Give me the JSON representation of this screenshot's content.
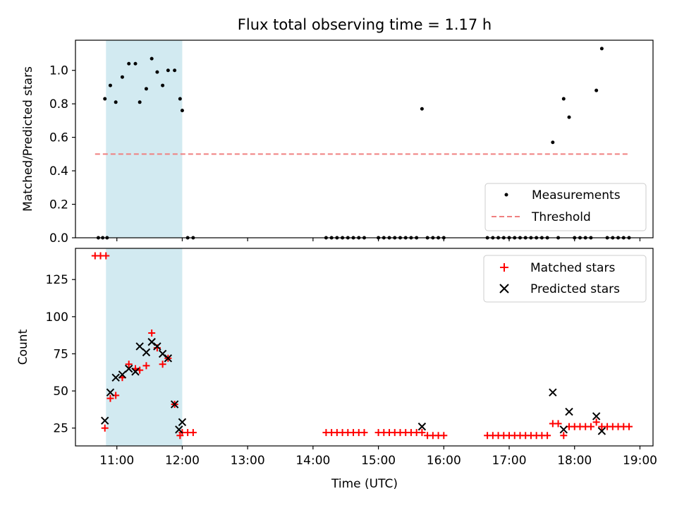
{
  "chart_data": [
    {
      "type": "scatter",
      "title": "Flux total observing time = 1.17 h",
      "xlabel": "",
      "ylabel": "Matched/Predicted stars",
      "ylim": [
        0,
        1.18
      ],
      "yticks": [
        0.0,
        0.2,
        0.4,
        0.6,
        0.8,
        1.0
      ],
      "ytick_labels": [
        "0.0",
        "0.2",
        "0.4",
        "0.6",
        "0.8",
        "1.0"
      ],
      "shaded_interval": [
        "10:50",
        "12:00"
      ],
      "legend_position": "lower-right",
      "series": [
        {
          "name": "Measurements",
          "marker": "dot",
          "color": "#000000",
          "points": [
            [
              "10:43",
              0
            ],
            [
              "10:47",
              0
            ],
            [
              "10:51",
              0
            ],
            [
              "10:49",
              0.83
            ],
            [
              "10:54",
              0.91
            ],
            [
              "10:59",
              0.81
            ],
            [
              "11:05",
              0.96
            ],
            [
              "11:11",
              1.04
            ],
            [
              "11:17",
              1.04
            ],
            [
              "11:21",
              0.81
            ],
            [
              "11:27",
              0.89
            ],
            [
              "11:32",
              1.07
            ],
            [
              "11:37",
              0.99
            ],
            [
              "11:42",
              0.91
            ],
            [
              "11:47",
              1.0
            ],
            [
              "11:53",
              1.0
            ],
            [
              "11:58",
              0.83
            ],
            [
              "12:00",
              0.76
            ],
            [
              "12:05",
              0
            ],
            [
              "12:10",
              0
            ],
            [
              "14:12",
              0
            ],
            [
              "14:17",
              0
            ],
            [
              "14:22",
              0
            ],
            [
              "14:27",
              0
            ],
            [
              "14:32",
              0
            ],
            [
              "14:37",
              0
            ],
            [
              "14:42",
              0
            ],
            [
              "14:47",
              0
            ],
            [
              "15:00",
              0
            ],
            [
              "15:05",
              0
            ],
            [
              "15:10",
              0
            ],
            [
              "15:15",
              0
            ],
            [
              "15:20",
              0
            ],
            [
              "15:25",
              0
            ],
            [
              "15:30",
              0
            ],
            [
              "15:35",
              0
            ],
            [
              "15:40",
              0.77
            ],
            [
              "15:45",
              0
            ],
            [
              "15:50",
              0
            ],
            [
              "15:55",
              0
            ],
            [
              "16:00",
              0
            ],
            [
              "16:40",
              0
            ],
            [
              "16:45",
              0
            ],
            [
              "16:50",
              0
            ],
            [
              "16:55",
              0
            ],
            [
              "17:00",
              0
            ],
            [
              "17:05",
              0
            ],
            [
              "17:10",
              0
            ],
            [
              "17:15",
              0
            ],
            [
              "17:20",
              0
            ],
            [
              "17:25",
              0
            ],
            [
              "17:30",
              0
            ],
            [
              "17:35",
              0
            ],
            [
              "17:40",
              0.57
            ],
            [
              "17:45",
              0
            ],
            [
              "17:50",
              0.83
            ],
            [
              "17:55",
              0.72
            ],
            [
              "18:00",
              0
            ],
            [
              "18:05",
              0
            ],
            [
              "18:10",
              0
            ],
            [
              "18:15",
              0
            ],
            [
              "18:20",
              0.88
            ],
            [
              "18:25",
              1.13
            ],
            [
              "18:30",
              0
            ],
            [
              "18:35",
              0
            ],
            [
              "18:40",
              0
            ],
            [
              "18:45",
              0
            ],
            [
              "18:50",
              0
            ]
          ]
        },
        {
          "name": "Threshold",
          "marker": "dashed-line",
          "color": "#f08080",
          "points": [
            [
              "10:40",
              0.5
            ],
            [
              "18:51",
              0.5
            ]
          ]
        }
      ]
    },
    {
      "type": "scatter",
      "title": "",
      "xlabel": "Time (UTC)",
      "ylabel": "Count",
      "ylim": [
        13,
        146
      ],
      "yticks": [
        25,
        50,
        75,
        100,
        125
      ],
      "ytick_labels": [
        "25",
        "50",
        "75",
        "100",
        "125"
      ],
      "xlim": [
        "10:22",
        "19:12"
      ],
      "xtick_labels": [
        "11:00",
        "12:00",
        "13:00",
        "14:00",
        "15:00",
        "16:00",
        "17:00",
        "18:00",
        "19:00"
      ],
      "shaded_interval": [
        "10:50",
        "12:00"
      ],
      "legend_position": "top-right",
      "series": [
        {
          "name": "Matched stars",
          "marker": "plus",
          "color": "#ff0000",
          "points": [
            [
              "10:40",
              141
            ],
            [
              "10:45",
              141
            ],
            [
              "10:50",
              141
            ],
            [
              "10:49",
              25
            ],
            [
              "10:54",
              45
            ],
            [
              "10:59",
              47
            ],
            [
              "11:05",
              59
            ],
            [
              "11:11",
              68
            ],
            [
              "11:17",
              65
            ],
            [
              "11:21",
              64
            ],
            [
              "11:27",
              67
            ],
            [
              "11:32",
              89
            ],
            [
              "11:37",
              79
            ],
            [
              "11:42",
              68
            ],
            [
              "11:47",
              72
            ],
            [
              "11:53",
              41
            ],
            [
              "11:58",
              20
            ],
            [
              "12:00",
              22
            ],
            [
              "12:05",
              22
            ],
            [
              "12:10",
              22
            ],
            [
              "14:12",
              22
            ],
            [
              "14:17",
              22
            ],
            [
              "14:22",
              22
            ],
            [
              "14:27",
              22
            ],
            [
              "14:32",
              22
            ],
            [
              "14:37",
              22
            ],
            [
              "14:42",
              22
            ],
            [
              "14:47",
              22
            ],
            [
              "15:00",
              22
            ],
            [
              "15:05",
              22
            ],
            [
              "15:10",
              22
            ],
            [
              "15:15",
              22
            ],
            [
              "15:20",
              22
            ],
            [
              "15:25",
              22
            ],
            [
              "15:30",
              22
            ],
            [
              "15:35",
              22
            ],
            [
              "15:40",
              22
            ],
            [
              "15:45",
              20
            ],
            [
              "15:50",
              20
            ],
            [
              "15:55",
              20
            ],
            [
              "16:00",
              20
            ],
            [
              "16:40",
              20
            ],
            [
              "16:45",
              20
            ],
            [
              "16:50",
              20
            ],
            [
              "16:55",
              20
            ],
            [
              "17:00",
              20
            ],
            [
              "17:05",
              20
            ],
            [
              "17:10",
              20
            ],
            [
              "17:15",
              20
            ],
            [
              "17:20",
              20
            ],
            [
              "17:25",
              20
            ],
            [
              "17:30",
              20
            ],
            [
              "17:35",
              20
            ],
            [
              "17:40",
              28
            ],
            [
              "17:45",
              28
            ],
            [
              "17:50",
              20
            ],
            [
              "17:55",
              26
            ],
            [
              "18:00",
              26
            ],
            [
              "18:05",
              26
            ],
            [
              "18:10",
              26
            ],
            [
              "18:15",
              26
            ],
            [
              "18:20",
              29
            ],
            [
              "18:25",
              26
            ],
            [
              "18:30",
              26
            ],
            [
              "18:35",
              26
            ],
            [
              "18:40",
              26
            ],
            [
              "18:45",
              26
            ],
            [
              "18:50",
              26
            ]
          ]
        },
        {
          "name": "Predicted stars",
          "marker": "x",
          "color": "#000000",
          "points": [
            [
              "10:49",
              30
            ],
            [
              "10:54",
              49
            ],
            [
              "10:59",
              59
            ],
            [
              "11:05",
              61
            ],
            [
              "11:11",
              65
            ],
            [
              "11:17",
              63
            ],
            [
              "11:21",
              80
            ],
            [
              "11:27",
              76
            ],
            [
              "11:32",
              83
            ],
            [
              "11:37",
              80
            ],
            [
              "11:42",
              75
            ],
            [
              "11:47",
              72
            ],
            [
              "11:53",
              41
            ],
            [
              "11:57",
              24
            ],
            [
              "12:00",
              29
            ],
            [
              "15:40",
              26
            ],
            [
              "17:40",
              49
            ],
            [
              "17:50",
              24
            ],
            [
              "17:55",
              36
            ],
            [
              "18:20",
              33
            ],
            [
              "18:25",
              23
            ]
          ]
        }
      ]
    }
  ]
}
